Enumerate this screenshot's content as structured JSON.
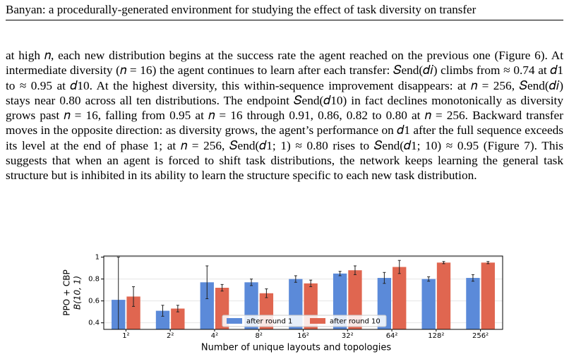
{
  "header": {
    "title": "Banyan: a procedurally-generated environment for studying the effect of task diversity on transfer"
  },
  "paragraph": "at high 𝑛, each new distribution begins at the success rate the agent reached on the previous one (Figure 6). At intermediate diversity (𝑛 = 16) the agent continues to learn after each transfer: 𝑆end(𝑑𝑖) climbs from ≈ 0.74 at 𝑑1 to ≈ 0.95 at 𝑑10. At the highest diversity, this within-sequence improvement disappears: at 𝑛 = 256, 𝑆end(𝑑𝑖) stays near 0.80 across all ten distributions. The endpoint 𝑆end(𝑑10) in fact declines monotonically as diversity grows past 𝑛 = 16, falling from 0.95 at 𝑛 = 16 through 0.91, 0.86, 0.82 to 0.80 at 𝑛 = 256. Backward transfer moves in the opposite direction: as diversity grows, the agent’s performance on 𝑑1 after the full sequence exceeds its level at the end of phase 1; at 𝑛 = 256, 𝑆end(𝑑1; 1) ≈ 0.80 rises to 𝑆end(𝑑1; 10) ≈ 0.95 (Figure 7). This suggests that when an agent is forced to shift task distributions, the network keeps learning the general task structure but is inhibited in its ability to learn the structure specific to each new task distribution.",
  "chart_data": {
    "type": "bar",
    "ylabel": [
      "PPO + CBP",
      "B(10, 1)"
    ],
    "xlabel": "Number of unique layouts and topologies",
    "categories": [
      "1²",
      "2²",
      "4²",
      "8²",
      "16²",
      "32²",
      "64²",
      "128²",
      "256²"
    ],
    "series": [
      {
        "name": "after round 1",
        "color": "#5b8ad9",
        "values": [
          0.61,
          0.51,
          0.77,
          0.77,
          0.8,
          0.85,
          0.81,
          0.8,
          0.81
        ],
        "errors": [
          0.39,
          0.05,
          0.15,
          0.03,
          0.03,
          0.02,
          0.05,
          0.02,
          0.03
        ]
      },
      {
        "name": "after round 10",
        "color": "#e06650",
        "values": [
          0.64,
          0.53,
          0.72,
          0.67,
          0.76,
          0.88,
          0.91,
          0.95,
          0.95
        ],
        "errors": [
          0.09,
          0.03,
          0.03,
          0.04,
          0.03,
          0.04,
          0.06,
          0.01,
          0.01
        ]
      }
    ],
    "ylim": [
      0.34,
      1.01
    ],
    "yticks": [
      0.4,
      0.6,
      0.8,
      1.0
    ],
    "grid": true,
    "legend": "bottom"
  }
}
